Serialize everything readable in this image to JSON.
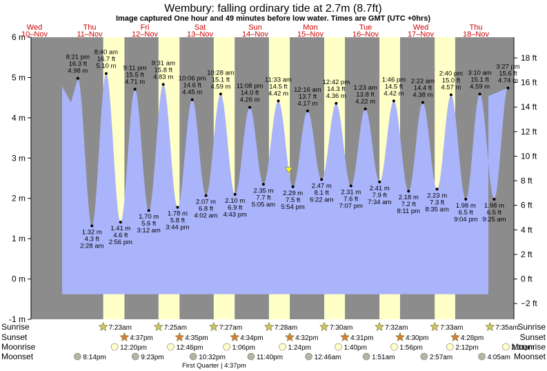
{
  "title": "Wembury: falling  ordinary tide at 2.7m (8.7ft)",
  "subtitle": "Image captured One hour and 49 minutes before low water. Times are GMT (UTC +0hrs)",
  "colors": {
    "day": "#ffffc8",
    "night": "#8c8c8c",
    "tide_fill": "#aab4fa",
    "day_label": "#cc0000",
    "sunrise_star": "#c8c864",
    "sunset_star": "#d28232",
    "moonrise_circle": "#ffffc8",
    "moonset_circle": "#b4b4a0",
    "current_marker": "#ffff00"
  },
  "chart_data": {
    "type": "area",
    "ylim_m": [
      -1,
      6
    ],
    "ylim_ft": [
      -3.28,
      19.69
    ],
    "y_ticks_m": [
      "-1 m",
      "0 m",
      "1 m",
      "2 m",
      "3 m",
      "4 m",
      "5 m",
      "6 m"
    ],
    "y_ticks_ft": [
      "−2 ft",
      "0 ft",
      "2 ft",
      "4 ft",
      "6 ft",
      "8 ft",
      "10 ft",
      "12 ft",
      "14 ft",
      "16 ft",
      "18 ft"
    ],
    "x_range_hours": [
      0,
      210
    ],
    "days": [
      {
        "weekday": "Wed",
        "date": "10–Nov"
      },
      {
        "weekday": "Thu",
        "date": "11–Nov"
      },
      {
        "weekday": "Fri",
        "date": "12–Nov"
      },
      {
        "weekday": "Sat",
        "date": "13–Nov"
      },
      {
        "weekday": "Sun",
        "date": "14–Nov"
      },
      {
        "weekday": "Mon",
        "date": "15–Nov"
      },
      {
        "weekday": "Tue",
        "date": "16–Nov"
      },
      {
        "weekday": "Wed",
        "date": "17–Nov"
      },
      {
        "weekday": "Thu",
        "date": "18–Nov"
      }
    ],
    "tides": [
      {
        "t": 20.35,
        "h": 4.98,
        "time": "8:21 pm",
        "ft": "16.3 ft",
        "m": "4.98 m",
        "type": "high"
      },
      {
        "t": 26.47,
        "h": 1.32,
        "time": "2:28 am",
        "ft": "4.3 ft",
        "m": "1.32 m",
        "type": "low"
      },
      {
        "t": 32.67,
        "h": 5.1,
        "time": "8:40 am",
        "ft": "16.7 ft",
        "m": "5.10 m",
        "type": "high"
      },
      {
        "t": 38.93,
        "h": 1.41,
        "time": "2:56 pm",
        "ft": "4.6 ft",
        "m": "1.41 m",
        "type": "low"
      },
      {
        "t": 45.18,
        "h": 4.71,
        "time": "9:11 pm",
        "ft": "15.5 ft",
        "m": "4.71 m",
        "type": "high"
      },
      {
        "t": 51.2,
        "h": 1.7,
        "time": "3:12 am",
        "ft": "5.6 ft",
        "m": "1.70 m",
        "type": "low"
      },
      {
        "t": 57.52,
        "h": 4.83,
        "time": "9:31 am",
        "ft": "15.8 ft",
        "m": "4.83 m",
        "type": "high"
      },
      {
        "t": 63.73,
        "h": 1.78,
        "time": "3:44 pm",
        "ft": "5.8 ft",
        "m": "1.78 m",
        "type": "low"
      },
      {
        "t": 70.1,
        "h": 4.45,
        "time": "10:06 pm",
        "ft": "14.6 ft",
        "m": "4.45 m",
        "type": "high"
      },
      {
        "t": 76.07,
        "h": 2.07,
        "time": "4:02 am",
        "ft": "6.8 ft",
        "m": "2.07 m",
        "type": "low"
      },
      {
        "t": 82.47,
        "h": 4.59,
        "time": "10:28 am",
        "ft": "15.1 ft",
        "m": "4.59 m",
        "type": "high"
      },
      {
        "t": 88.72,
        "h": 2.1,
        "time": "4:43 pm",
        "ft": "6.9 ft",
        "m": "2.10 m",
        "type": "low"
      },
      {
        "t": 95.13,
        "h": 4.26,
        "time": "11:08 pm",
        "ft": "14.0 ft",
        "m": "4.26 m",
        "type": "high"
      },
      {
        "t": 101.08,
        "h": 2.35,
        "time": "5:05 am",
        "ft": "7.7 ft",
        "m": "2.35 m",
        "type": "low"
      },
      {
        "t": 107.55,
        "h": 4.42,
        "time": "11:33 am",
        "ft": "14.5 ft",
        "m": "4.42 m",
        "type": "high"
      },
      {
        "t": 113.9,
        "h": 2.29,
        "time": "5:54 pm",
        "ft": "7.5 ft",
        "m": "2.29 m",
        "type": "low"
      },
      {
        "t": 120.27,
        "h": 4.17,
        "time": "12:16 am",
        "ft": "13.7 ft",
        "m": "4.17 m",
        "type": "high"
      },
      {
        "t": 126.37,
        "h": 2.47,
        "time": "6:22 am",
        "ft": "8.1 ft",
        "m": "2.47 m",
        "type": "low"
      },
      {
        "t": 132.7,
        "h": 4.36,
        "time": "12:42 pm",
        "ft": "14.3 ft",
        "m": "4.36 m",
        "type": "high"
      },
      {
        "t": 139.12,
        "h": 2.31,
        "time": "7:07 pm",
        "ft": "7.6 ft",
        "m": "2.31 m",
        "type": "low"
      },
      {
        "t": 145.38,
        "h": 4.22,
        "time": "1:23 am",
        "ft": "13.8 ft",
        "m": "4.22 m",
        "type": "high"
      },
      {
        "t": 151.57,
        "h": 2.41,
        "time": "7:34 am",
        "ft": "7.9 ft",
        "m": "2.41 m",
        "type": "low"
      },
      {
        "t": 157.77,
        "h": 4.42,
        "time": "1:46 pm",
        "ft": "14.5 ft",
        "m": "4.42 m",
        "type": "high"
      },
      {
        "t": 164.18,
        "h": 2.18,
        "time": "8:11 pm",
        "ft": "7.2 ft",
        "m": "2.18 m",
        "type": "low"
      },
      {
        "t": 170.37,
        "h": 4.38,
        "time": "2:22 am",
        "ft": "14.4 ft",
        "m": "4.38 m",
        "type": "high"
      },
      {
        "t": 176.58,
        "h": 2.23,
        "time": "8:35 am",
        "ft": "7.3 ft",
        "m": "2.23 m",
        "type": "low"
      },
      {
        "t": 182.67,
        "h": 4.57,
        "time": "2:40 pm",
        "ft": "15.0 ft",
        "m": "4.57 m",
        "type": "high"
      },
      {
        "t": 189.07,
        "h": 1.98,
        "time": "9:04 pm",
        "ft": "6.5 ft",
        "m": "1.98 m",
        "type": "low"
      },
      {
        "t": 195.17,
        "h": 4.59,
        "time": "3:10 am",
        "ft": "15.1 ft",
        "m": "4.59 m",
        "type": "high"
      },
      {
        "t": 201.42,
        "h": 1.98,
        "time": "9:25 am",
        "ft": "6.5 ft",
        "m": "1.98 m",
        "type": "low"
      },
      {
        "t": 207.45,
        "h": 4.74,
        "time": "3:27 pm",
        "ft": "15.6 ft",
        "m": "4.74 m",
        "type": "high"
      }
    ],
    "current": {
      "t": 112.07,
      "h": 2.7
    },
    "daylight": [
      {
        "rise": 31.38,
        "set": 40.62
      },
      {
        "rise": 55.42,
        "set": 64.58
      },
      {
        "rise": 79.45,
        "set": 88.57
      },
      {
        "rise": 103.47,
        "set": 112.53
      },
      {
        "rise": 127.5,
        "set": 136.52
      },
      {
        "rise": 151.53,
        "set": 160.5
      },
      {
        "rise": 175.55,
        "set": 184.47
      }
    ],
    "events": {
      "sunrise": [
        {
          "t": 31.38,
          "label": "7:23am"
        },
        {
          "t": 55.42,
          "label": "7:25am"
        },
        {
          "t": 79.45,
          "label": "7:27am"
        },
        {
          "t": 103.47,
          "label": "7:28am"
        },
        {
          "t": 127.5,
          "label": "7:30am"
        },
        {
          "t": 151.53,
          "label": "7:32am"
        },
        {
          "t": 175.55,
          "label": "7:33am"
        },
        {
          "t": 199.58,
          "label": "7:35am"
        }
      ],
      "sunset": [
        {
          "t": 40.62,
          "label": "4:37pm"
        },
        {
          "t": 64.58,
          "label": "4:35pm"
        },
        {
          "t": 88.57,
          "label": "4:34pm"
        },
        {
          "t": 112.53,
          "label": "4:32pm"
        },
        {
          "t": 136.52,
          "label": "4:31pm"
        },
        {
          "t": 160.5,
          "label": "4:30pm"
        },
        {
          "t": 184.47,
          "label": "4:28pm"
        }
      ],
      "moonrise": [
        {
          "t": 36.33,
          "label": "12:20pm"
        },
        {
          "t": 60.77,
          "label": "12:46pm"
        },
        {
          "t": 85.1,
          "label": "1:06pm"
        },
        {
          "t": 109.4,
          "label": "1:24pm"
        },
        {
          "t": 133.67,
          "label": "1:40pm"
        },
        {
          "t": 157.93,
          "label": "1:56pm"
        },
        {
          "t": 182.2,
          "label": "2:12pm"
        },
        {
          "t": 206.52,
          "label": "2:31pm"
        }
      ],
      "moonset": [
        {
          "t": 20.23,
          "label": "8:14pm"
        },
        {
          "t": 45.38,
          "label": "9:23pm"
        },
        {
          "t": 70.53,
          "label": "10:32pm"
        },
        {
          "t": 95.67,
          "label": "11:40pm"
        },
        {
          "t": 120.77,
          "label": "12:46am"
        },
        {
          "t": 145.85,
          "label": "1:51am"
        },
        {
          "t": 170.95,
          "label": "2:57am"
        },
        {
          "t": 196.08,
          "label": "4:05am"
        }
      ]
    },
    "row_labels": {
      "sunrise": "Sunrise",
      "sunset": "Sunset",
      "moonrise": "Moonrise",
      "moonset": "Moonset"
    },
    "moon_phase_note": "First Quarter | 4:37pm",
    "moon_phase_t": 88.62
  }
}
